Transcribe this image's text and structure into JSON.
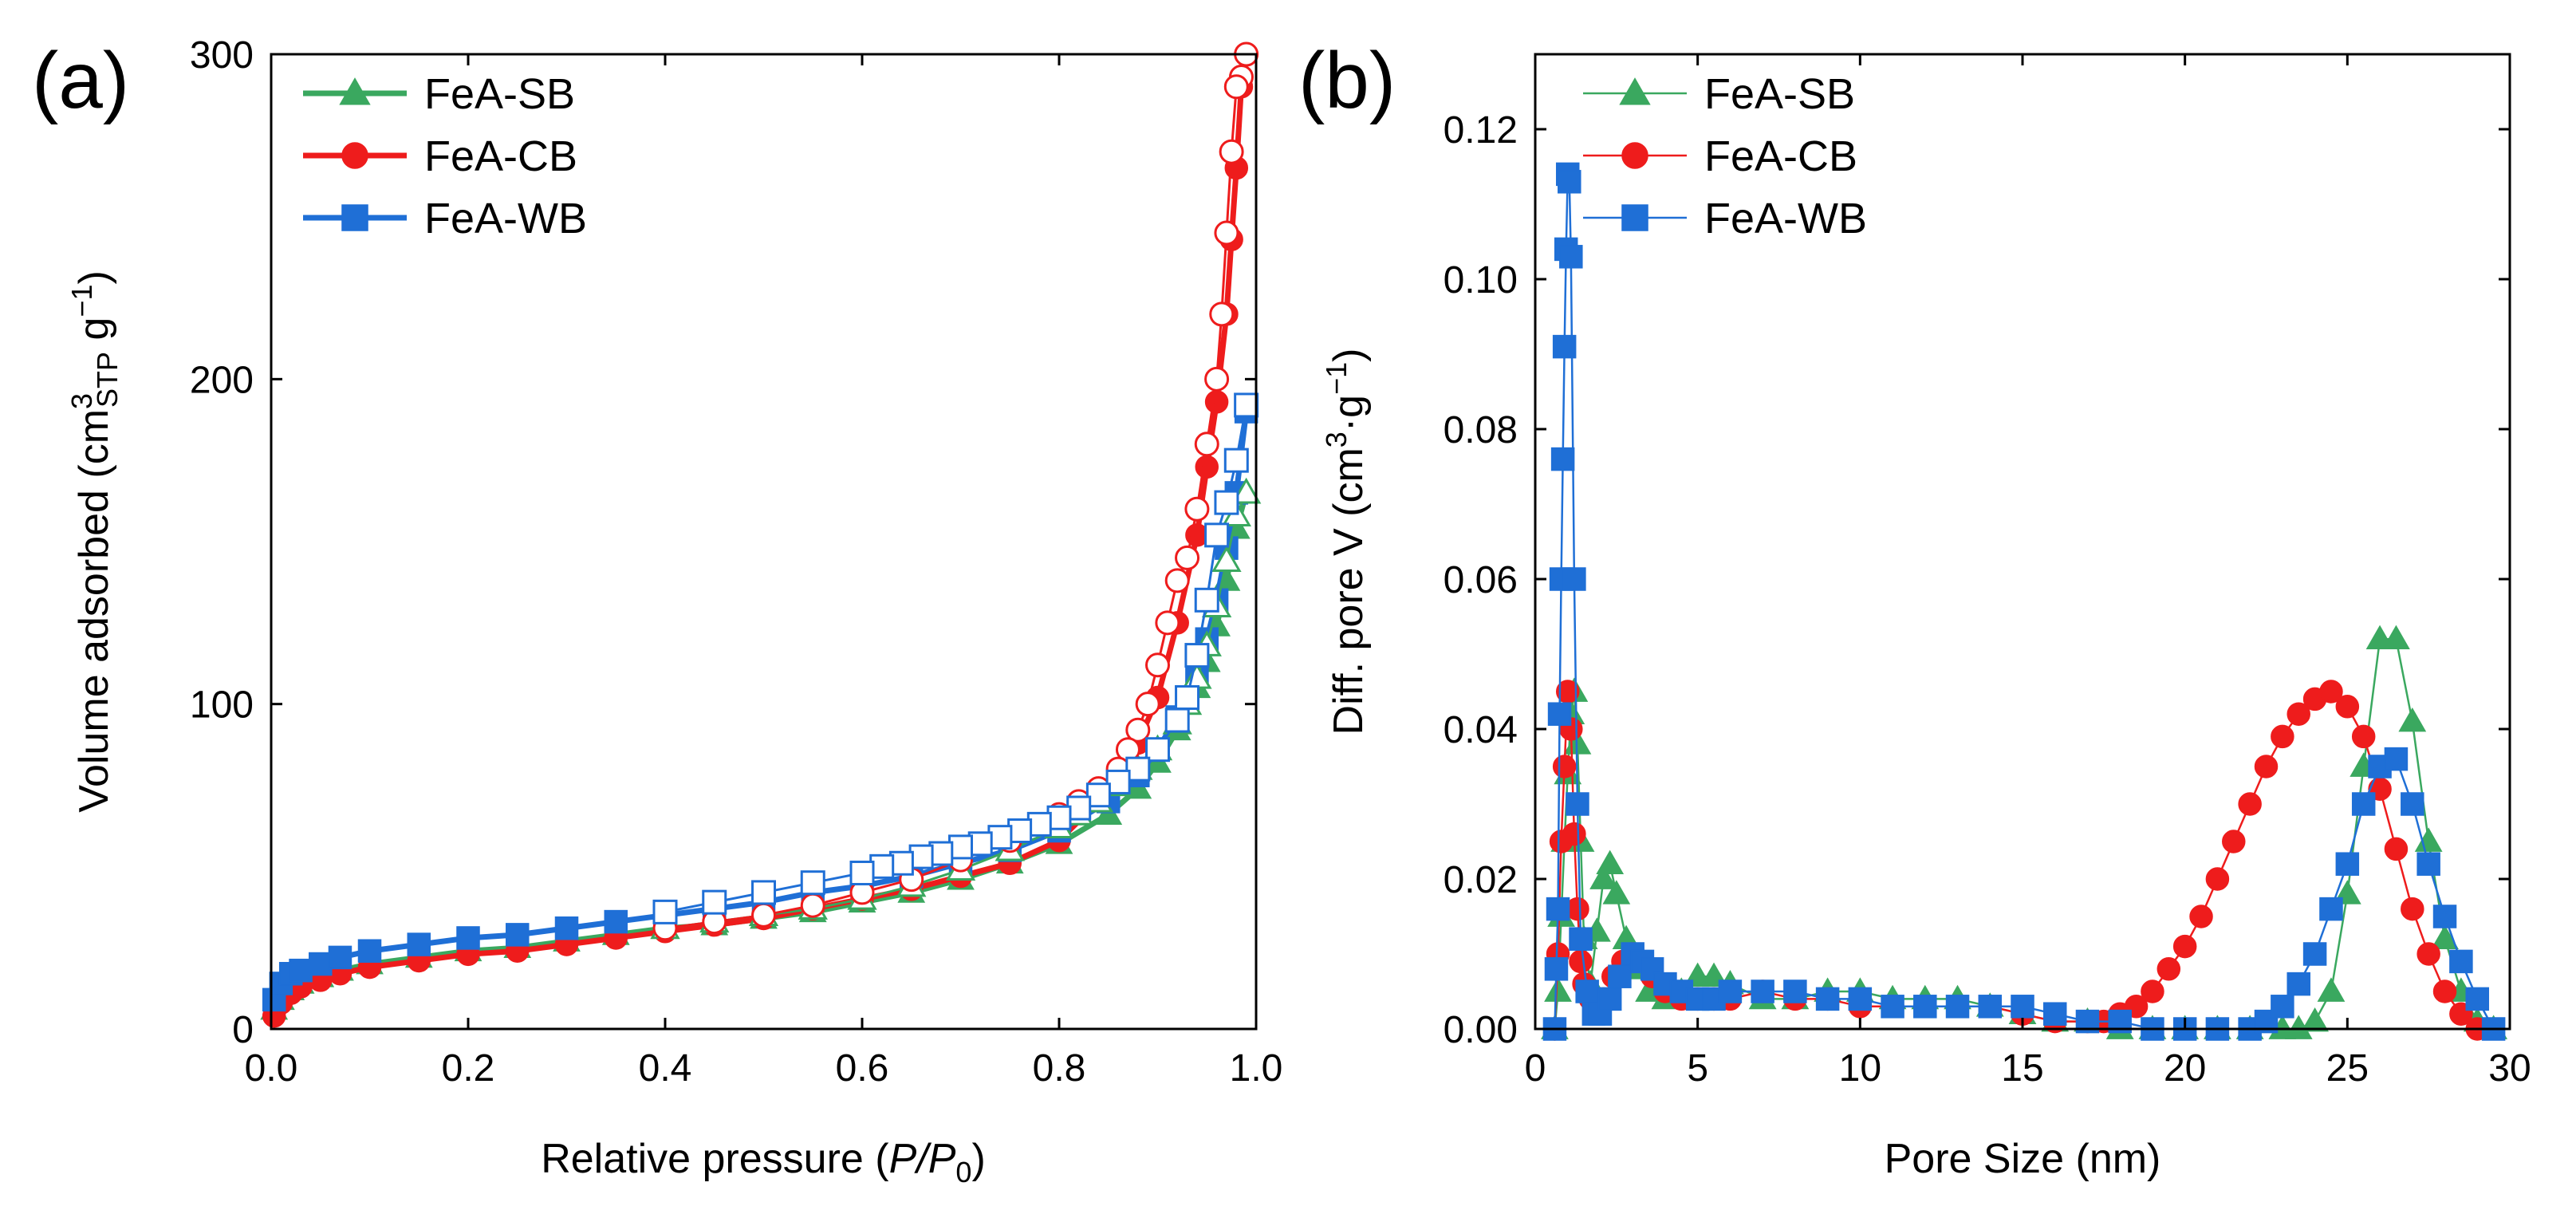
{
  "chart_data": [
    {
      "panel_label": "(a)",
      "type": "line",
      "xlabel_prefix": "Relative pressure (",
      "xlabel_var1": "P",
      "xlabel_slash": "/",
      "xlabel_var2": "P",
      "xlabel_sub": "0",
      "xlabel_suffix": ")",
      "ylabel_prefix": "Volume adsorbed (cm",
      "ylabel_sup1": "3",
      "ylabel_sub": "STP",
      "ylabel_mid": " g",
      "ylabel_sup2": "−1",
      "ylabel_suffix": ")",
      "xlim": [
        0,
        1.0
      ],
      "ylim": [
        0,
        300
      ],
      "xticks": [
        0.0,
        0.2,
        0.4,
        0.6,
        0.8,
        1.0
      ],
      "xtick_labels": [
        "0.0",
        "0.2",
        "0.4",
        "0.6",
        "0.8",
        "1.0"
      ],
      "yticks": [
        0,
        100,
        200,
        300
      ],
      "ytick_labels": [
        "0",
        "100",
        "200",
        "300"
      ],
      "legend": [
        "FeA-SB",
        "FeA-CB",
        "FeA-WB"
      ],
      "series": [
        {
          "name": "FeA-SB",
          "color": "#3aa85f",
          "marker": "triangle",
          "adsorption": {
            "x": [
              0.003,
              0.01,
              0.02,
              0.03,
              0.05,
              0.07,
              0.1,
              0.15,
              0.2,
              0.25,
              0.3,
              0.35,
              0.4,
              0.45,
              0.5,
              0.55,
              0.6,
              0.65,
              0.7,
              0.75,
              0.8,
              0.85,
              0.88,
              0.9,
              0.92,
              0.94,
              0.95,
              0.96,
              0.97,
              0.98,
              0.99
            ],
            "y": [
              6,
              9,
              12,
              14,
              16,
              18,
              20,
              22,
              24,
              25,
              27,
              29,
              31,
              32,
              34,
              36,
              39,
              42,
              46,
              51,
              57,
              66,
              74,
              82,
              92,
              105,
              113,
              124,
              138,
              154,
              165
            ]
          },
          "desorption": {
            "x": [
              0.99,
              0.98,
              0.97,
              0.96,
              0.95,
              0.94,
              0.93,
              0.92,
              0.9,
              0.88,
              0.86,
              0.84,
              0.82,
              0.8,
              0.75,
              0.7,
              0.65,
              0.6,
              0.55,
              0.5,
              0.45,
              0.4
            ],
            "y": [
              165,
              158,
              144,
              130,
              118,
              108,
              100,
              94,
              86,
              80,
              75,
              70,
              66,
              62,
              55,
              49,
              44,
              40,
              37,
              35,
              33,
              31
            ]
          }
        },
        {
          "name": "FeA-CB",
          "color": "#ee1c1c",
          "marker": "circle",
          "adsorption": {
            "x": [
              0.003,
              0.01,
              0.02,
              0.03,
              0.05,
              0.07,
              0.1,
              0.15,
              0.2,
              0.25,
              0.3,
              0.35,
              0.4,
              0.45,
              0.5,
              0.55,
              0.6,
              0.65,
              0.7,
              0.75,
              0.8,
              0.85,
              0.88,
              0.9,
              0.92,
              0.94,
              0.95,
              0.96,
              0.97,
              0.975,
              0.98,
              0.985,
              0.99
            ],
            "y": [
              4,
              8,
              11,
              13,
              15,
              17,
              19,
              21,
              23,
              24,
              26,
              28,
              30,
              32,
              34,
              37,
              40,
              43,
              47,
              51,
              58,
              73,
              88,
              102,
              125,
              152,
              173,
              193,
              220,
              243,
              265,
              290,
              300
            ]
          },
          "desorption": {
            "x": [
              0.99,
              0.985,
              0.98,
              0.975,
              0.97,
              0.965,
              0.96,
              0.95,
              0.94,
              0.93,
              0.92,
              0.91,
              0.9,
              0.89,
              0.88,
              0.87,
              0.86,
              0.84,
              0.82,
              0.8,
              0.75,
              0.7,
              0.65,
              0.6,
              0.55,
              0.5,
              0.45,
              0.4
            ],
            "y": [
              300,
              293,
              290,
              270,
              245,
              220,
              200,
              180,
              160,
              145,
              138,
              125,
              112,
              100,
              92,
              86,
              80,
              74,
              70,
              66,
              58,
              52,
              46,
              42,
              38,
              35,
              33,
              31
            ]
          }
        },
        {
          "name": "FeA-WB",
          "color": "#1f6fd6",
          "marker": "square",
          "adsorption": {
            "x": [
              0.003,
              0.01,
              0.02,
              0.03,
              0.05,
              0.07,
              0.1,
              0.15,
              0.2,
              0.25,
              0.3,
              0.35,
              0.4,
              0.45,
              0.5,
              0.55,
              0.6,
              0.65,
              0.7,
              0.75,
              0.8,
              0.85,
              0.88,
              0.9,
              0.92,
              0.94,
              0.95,
              0.96,
              0.97,
              0.98,
              0.99
            ],
            "y": [
              9,
              14,
              17,
              18,
              20,
              22,
              24,
              26,
              28,
              29,
              31,
              33,
              35,
              37,
              39,
              42,
              44,
              47,
              51,
              55,
              61,
              70,
              78,
              86,
              96,
              110,
              120,
              132,
              148,
              165,
              190
            ]
          },
          "desorption": {
            "x": [
              0.99,
              0.98,
              0.97,
              0.96,
              0.95,
              0.94,
              0.93,
              0.92,
              0.9,
              0.88,
              0.86,
              0.84,
              0.82,
              0.8,
              0.78,
              0.76,
              0.74,
              0.72,
              0.7,
              0.68,
              0.66,
              0.64,
              0.62,
              0.6,
              0.55,
              0.5,
              0.45,
              0.4
            ],
            "y": [
              192,
              175,
              162,
              152,
              132,
              115,
              102,
              95,
              86,
              80,
              76,
              72,
              68,
              65,
              63,
              61,
              59,
              57,
              56,
              54,
              53,
              51,
              50,
              48,
              45,
              42,
              39,
              36
            ]
          }
        }
      ]
    },
    {
      "panel_label": "(b)",
      "type": "line",
      "xlabel": "Pore Size (nm)",
      "ylabel_prefix": "Diff. pore V (cm",
      "ylabel_sup1": "3",
      "ylabel_mid": "·g",
      "ylabel_sup2": "−1",
      "ylabel_suffix": ")",
      "xlim": [
        0,
        30
      ],
      "ylim": [
        0,
        0.13
      ],
      "xticks": [
        0,
        5,
        10,
        15,
        20,
        25,
        30
      ],
      "xtick_labels": [
        "0",
        "5",
        "10",
        "15",
        "20",
        "25",
        "30"
      ],
      "yticks": [
        0.0,
        0.02,
        0.04,
        0.06,
        0.08,
        0.1,
        0.12
      ],
      "ytick_labels": [
        "0.00",
        "0.02",
        "0.04",
        "0.06",
        "0.08",
        "0.10",
        "0.12"
      ],
      "legend": [
        "FeA-SB",
        "FeA-CB",
        "FeA-WB"
      ],
      "series": [
        {
          "name": "FeA-SB",
          "color": "#3aa85f",
          "marker": "triangle",
          "x": [
            0.6,
            0.7,
            0.8,
            0.9,
            1.0,
            1.1,
            1.2,
            1.3,
            1.4,
            1.5,
            1.7,
            1.9,
            2.1,
            2.3,
            2.5,
            2.8,
            3.1,
            3.5,
            4.0,
            4.5,
            5.0,
            5.5,
            6.0,
            7.0,
            8.0,
            9.0,
            10.0,
            11.0,
            12.0,
            13.0,
            14.0,
            15.0,
            16.0,
            17.0,
            18.0,
            19.0,
            20.0,
            21.0,
            22.0,
            23.0,
            23.5,
            24.0,
            24.5,
            25.0,
            25.5,
            26.0,
            26.5,
            27.0,
            27.5,
            28.0,
            28.5,
            29.0,
            29.5
          ],
          "y": [
            0.0,
            0.005,
            0.015,
            0.025,
            0.034,
            0.042,
            0.045,
            0.038,
            0.025,
            0.012,
            0.006,
            0.013,
            0.02,
            0.022,
            0.018,
            0.012,
            0.008,
            0.005,
            0.004,
            0.005,
            0.007,
            0.007,
            0.006,
            0.004,
            0.004,
            0.005,
            0.005,
            0.004,
            0.004,
            0.004,
            0.003,
            0.002,
            0.001,
            0.001,
            0.0,
            0.0,
            0.0,
            0.0,
            0.0,
            0.0,
            0.0,
            0.001,
            0.005,
            0.018,
            0.035,
            0.052,
            0.052,
            0.041,
            0.025,
            0.012,
            0.005,
            0.001,
            0.0
          ]
        },
        {
          "name": "FeA-CB",
          "color": "#ee1c1c",
          "marker": "circle",
          "x": [
            0.6,
            0.7,
            0.8,
            0.9,
            1.0,
            1.1,
            1.2,
            1.3,
            1.4,
            1.5,
            1.7,
            1.9,
            2.1,
            2.4,
            2.7,
            3.0,
            3.3,
            3.6,
            4.0,
            4.5,
            5.0,
            5.5,
            6.0,
            7.0,
            8.0,
            9.0,
            10.0,
            11.0,
            12.0,
            13.0,
            14.0,
            15.0,
            16.0,
            17.0,
            17.5,
            18.0,
            18.5,
            19.0,
            19.5,
            20.0,
            20.5,
            21.0,
            21.5,
            22.0,
            22.5,
            23.0,
            23.5,
            24.0,
            24.5,
            25.0,
            25.5,
            26.0,
            26.5,
            27.0,
            27.5,
            28.0,
            28.5,
            29.0
          ],
          "y": [
            0.0,
            0.01,
            0.025,
            0.035,
            0.045,
            0.04,
            0.026,
            0.016,
            0.009,
            0.006,
            0.004,
            0.003,
            0.004,
            0.007,
            0.009,
            0.01,
            0.009,
            0.007,
            0.005,
            0.004,
            0.004,
            0.004,
            0.004,
            0.005,
            0.004,
            0.004,
            0.003,
            0.003,
            0.003,
            0.003,
            0.003,
            0.002,
            0.001,
            0.001,
            0.001,
            0.002,
            0.003,
            0.005,
            0.008,
            0.011,
            0.015,
            0.02,
            0.025,
            0.03,
            0.035,
            0.039,
            0.042,
            0.044,
            0.045,
            0.043,
            0.039,
            0.032,
            0.024,
            0.016,
            0.01,
            0.005,
            0.002,
            0.0
          ]
        },
        {
          "name": "FeA-WB",
          "color": "#1f6fd6",
          "marker": "square",
          "x": [
            0.6,
            0.65,
            0.7,
            0.75,
            0.8,
            0.85,
            0.9,
            0.95,
            1.0,
            1.05,
            1.1,
            1.2,
            1.3,
            1.4,
            1.6,
            1.8,
            2.0,
            2.3,
            2.6,
            3.0,
            3.3,
            3.6,
            4.0,
            4.5,
            5.0,
            5.5,
            6.0,
            7.0,
            8.0,
            9.0,
            10.0,
            11.0,
            12.0,
            13.0,
            14.0,
            15.0,
            16.0,
            17.0,
            18.0,
            19.0,
            20.0,
            21.0,
            22.0,
            22.5,
            23.0,
            23.5,
            24.0,
            24.5,
            25.0,
            25.5,
            26.0,
            26.5,
            27.0,
            27.5,
            28.0,
            28.5,
            29.0,
            29.5
          ],
          "y": [
            0.0,
            0.008,
            0.016,
            0.042,
            0.06,
            0.076,
            0.091,
            0.104,
            0.114,
            0.113,
            0.103,
            0.06,
            0.03,
            0.012,
            0.005,
            0.002,
            0.002,
            0.004,
            0.007,
            0.01,
            0.009,
            0.008,
            0.006,
            0.005,
            0.004,
            0.004,
            0.005,
            0.005,
            0.005,
            0.004,
            0.004,
            0.003,
            0.003,
            0.003,
            0.003,
            0.003,
            0.002,
            0.001,
            0.001,
            0.0,
            0.0,
            0.0,
            0.0,
            0.001,
            0.003,
            0.006,
            0.01,
            0.016,
            0.022,
            0.03,
            0.035,
            0.036,
            0.03,
            0.022,
            0.015,
            0.009,
            0.004,
            0.0
          ]
        }
      ]
    }
  ]
}
